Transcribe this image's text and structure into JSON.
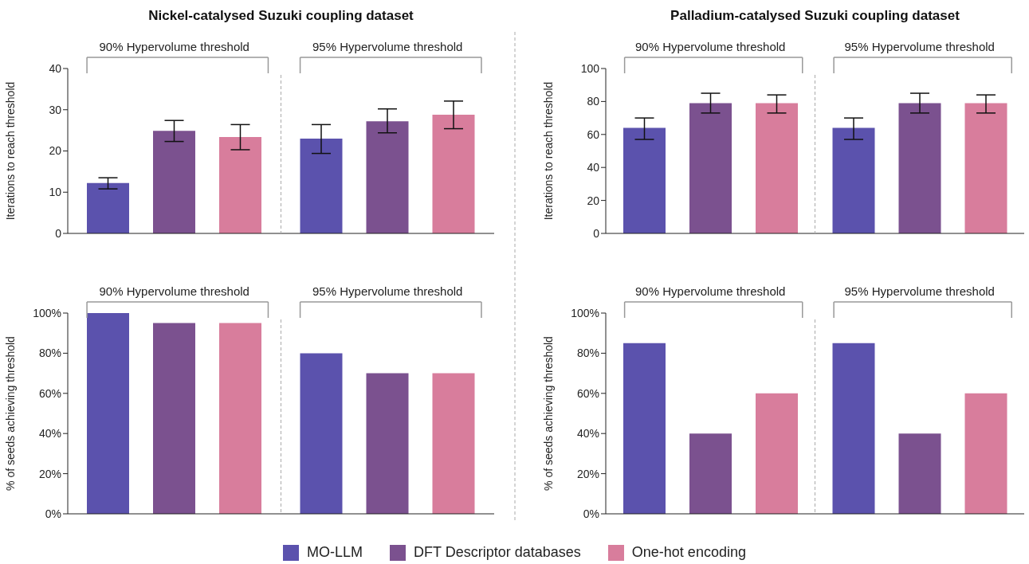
{
  "chart_data": [
    {
      "type": "bar",
      "title": "Nickel-catalysed Suzuki coupling dataset",
      "ylabel": "Iterations  to reach threshold",
      "categories": [
        "90% Hypervolume threshold",
        "95% Hypervolume threshold"
      ],
      "ylim": [
        0,
        40
      ],
      "yticks": [
        0,
        10,
        20,
        30,
        40
      ],
      "tick_labels": "y",
      "legend": "bottom",
      "series": [
        {
          "name": "MO-LLM",
          "color": "#5b52ad",
          "values": [
            12.2,
            23
          ],
          "errors": [
            [
              10.8,
              13.5
            ],
            [
              19.4,
              26.4
            ]
          ]
        },
        {
          "name": "DFT Descriptor databases",
          "color": "#7b518f",
          "values": [
            24.9,
            27.2
          ],
          "errors": [
            [
              22.3,
              27.4
            ],
            [
              24.4,
              30.2
            ]
          ]
        },
        {
          "name": "One-hot encoding",
          "color": "#d87d9c",
          "values": [
            23.4,
            28.8
          ],
          "errors": [
            [
              20.3,
              26.4
            ],
            [
              25.4,
              32.1
            ]
          ]
        }
      ]
    },
    {
      "type": "bar",
      "title": "Palladium-catalysed Suzuki coupling dataset",
      "ylabel": "Iterations  to reach threshold",
      "categories": [
        "90% Hypervolume threshold",
        "95% Hypervolume threshold"
      ],
      "ylim": [
        0,
        100
      ],
      "yticks": [
        0,
        20,
        40,
        60,
        80,
        100
      ],
      "tick_labels": "y",
      "series": [
        {
          "color": "#5b52ad",
          "values": [
            64,
            64
          ],
          "errors": [
            [
              57,
              70
            ],
            [
              57,
              70
            ]
          ]
        },
        {
          "color": "#7b518f",
          "values": [
            79,
            79
          ],
          "errors": [
            [
              73,
              85
            ],
            [
              73,
              85
            ]
          ]
        },
        {
          "color": "#d87d9c",
          "values": [
            79,
            79
          ],
          "errors": [
            [
              73,
              84
            ],
            [
              73,
              84
            ]
          ]
        }
      ]
    },
    {
      "type": "bar",
      "ylabel": "% of seeds achieving threshold",
      "categories": [
        "90% Hypervolume threshold",
        "95% Hypervolume threshold"
      ],
      "ylim": [
        0,
        100
      ],
      "yticks": [
        {
          "value": 0,
          "label": "0%"
        },
        {
          "value": 20,
          "label": "20%"
        },
        {
          "value": 40,
          "label": "40%"
        },
        {
          "value": 60,
          "label": "60%"
        },
        {
          "value": 80,
          "label": "80%"
        },
        {
          "value": 100,
          "label": "100%"
        }
      ],
      "tick_labels": "y",
      "series": [
        {
          "color": "#5b52ad",
          "values": [
            100,
            80
          ]
        },
        {
          "color": "#7b518f",
          "values": [
            95,
            70
          ]
        },
        {
          "color": "#d87d9c",
          "values": [
            95,
            70
          ]
        }
      ]
    },
    {
      "type": "bar",
      "ylabel": "% of seeds achieving threshold",
      "categories": [
        "90% Hypervolume threshold",
        "95% Hypervolume threshold"
      ],
      "ylim": [
        0,
        100
      ],
      "yticks": [
        {
          "value": 0,
          "label": "0%"
        },
        {
          "value": 20,
          "label": "20%"
        },
        {
          "value": 40,
          "label": "40%"
        },
        {
          "value": 60,
          "label": "60%"
        },
        {
          "value": 80,
          "label": "80%"
        },
        {
          "value": 100,
          "label": "100%"
        }
      ],
      "tick_labels": "y",
      "series": [
        {
          "color": "#5b52ad",
          "values": [
            85,
            85
          ]
        },
        {
          "color": "#7b518f",
          "values": [
            40,
            40
          ]
        },
        {
          "color": "#d87d9c",
          "values": [
            60,
            60
          ]
        }
      ]
    }
  ]
}
